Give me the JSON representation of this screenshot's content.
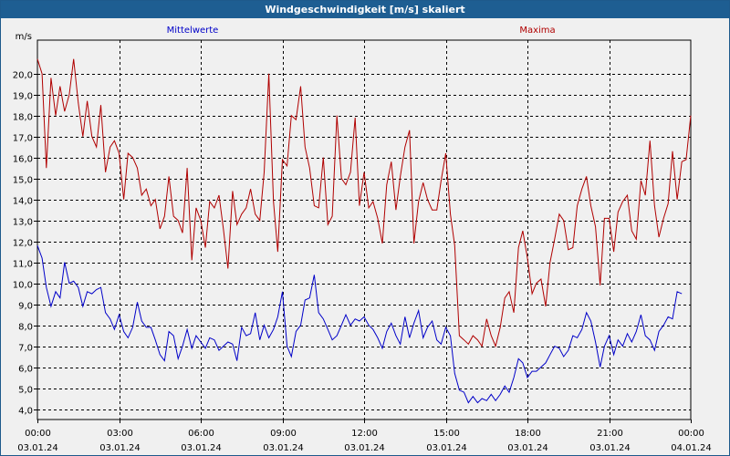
{
  "window": {
    "title": "Windgeschwindigkeit [m/s] skaliert"
  },
  "colors": {
    "titlebar": "#1e5e92",
    "mittelwerte": "#0000c8",
    "maxima": "#b00000",
    "grid": "#000000"
  },
  "chart_data": {
    "type": "line",
    "title": "Windgeschwindigkeit [m/s] skaliert",
    "ylabel": "m/s",
    "xlabel": "",
    "ylim": [
      3.5,
      21.6
    ],
    "yticks": [
      4.0,
      5.0,
      6.0,
      7.0,
      8.0,
      9.0,
      10.0,
      11.0,
      12.0,
      13.0,
      14.0,
      15.0,
      16.0,
      17.0,
      18.0,
      19.0,
      20.0
    ],
    "ytick_labels": [
      "4,0",
      "5,0",
      "6,0",
      "7,0",
      "8,0",
      "9,0",
      "10,0",
      "11,0",
      "12,0",
      "13,0",
      "14,0",
      "15,0",
      "16,0",
      "17,0",
      "18,0",
      "19,0",
      "20,0"
    ],
    "xlim": [
      0,
      24
    ],
    "xticks": [
      0,
      3,
      6,
      9,
      12,
      15,
      18,
      21,
      24
    ],
    "xtick_time_labels": [
      "00:00",
      "03:00",
      "06:00",
      "09:00",
      "12:00",
      "15:00",
      "18:00",
      "21:00",
      "00:00"
    ],
    "xtick_date_labels": [
      "03.01.24",
      "03.01.24",
      "03.01.24",
      "03.01.24",
      "03.01.24",
      "03.01.24",
      "03.01.24",
      "03.01.24",
      "04.01.24"
    ],
    "grid": true,
    "legend": "top",
    "series": [
      {
        "name": "Mittelwerte",
        "color": "#0000c8",
        "values": [
          [
            0.0,
            11.8
          ],
          [
            0.17,
            11.2
          ],
          [
            0.33,
            9.8
          ],
          [
            0.5,
            8.9
          ],
          [
            0.67,
            9.6
          ],
          [
            0.83,
            9.3
          ],
          [
            1.0,
            11.0
          ],
          [
            1.17,
            10.0
          ],
          [
            1.33,
            10.1
          ],
          [
            1.5,
            9.8
          ],
          [
            1.67,
            8.9
          ],
          [
            1.83,
            9.6
          ],
          [
            2.0,
            9.5
          ],
          [
            2.17,
            9.7
          ],
          [
            2.33,
            9.8
          ],
          [
            2.5,
            8.6
          ],
          [
            2.67,
            8.3
          ],
          [
            2.83,
            7.8
          ],
          [
            3.0,
            8.5
          ],
          [
            3.17,
            7.7
          ],
          [
            3.33,
            7.4
          ],
          [
            3.5,
            7.9
          ],
          [
            3.67,
            9.1
          ],
          [
            3.83,
            8.2
          ],
          [
            4.0,
            7.9
          ],
          [
            4.17,
            7.9
          ],
          [
            4.33,
            7.3
          ],
          [
            4.5,
            6.6
          ],
          [
            4.67,
            6.3
          ],
          [
            4.83,
            7.7
          ],
          [
            5.0,
            7.5
          ],
          [
            5.17,
            6.4
          ],
          [
            5.33,
            7.0
          ],
          [
            5.5,
            7.8
          ],
          [
            5.67,
            6.9
          ],
          [
            5.83,
            7.5
          ],
          [
            6.0,
            7.2
          ],
          [
            6.17,
            6.9
          ],
          [
            6.33,
            7.4
          ],
          [
            6.5,
            7.3
          ],
          [
            6.67,
            6.8
          ],
          [
            6.83,
            7.0
          ],
          [
            7.0,
            7.2
          ],
          [
            7.17,
            7.1
          ],
          [
            7.33,
            6.3
          ],
          [
            7.5,
            7.9
          ],
          [
            7.67,
            7.5
          ],
          [
            7.83,
            7.6
          ],
          [
            8.0,
            8.6
          ],
          [
            8.17,
            7.3
          ],
          [
            8.33,
            8.0
          ],
          [
            8.5,
            7.4
          ],
          [
            8.67,
            7.8
          ],
          [
            8.83,
            8.4
          ],
          [
            9.0,
            9.6
          ],
          [
            9.17,
            7.0
          ],
          [
            9.33,
            6.5
          ],
          [
            9.5,
            7.7
          ],
          [
            9.67,
            8.0
          ],
          [
            9.83,
            9.2
          ],
          [
            10.0,
            9.3
          ],
          [
            10.17,
            10.4
          ],
          [
            10.33,
            8.6
          ],
          [
            10.5,
            8.3
          ],
          [
            10.67,
            7.8
          ],
          [
            10.83,
            7.3
          ],
          [
            11.0,
            7.5
          ],
          [
            11.17,
            8.0
          ],
          [
            11.33,
            8.5
          ],
          [
            11.5,
            8.0
          ],
          [
            11.67,
            8.3
          ],
          [
            11.83,
            8.2
          ],
          [
            12.0,
            8.4
          ],
          [
            12.17,
            8.0
          ],
          [
            12.33,
            7.8
          ],
          [
            12.5,
            7.4
          ],
          [
            12.67,
            6.9
          ],
          [
            12.83,
            7.7
          ],
          [
            13.0,
            8.1
          ],
          [
            13.17,
            7.5
          ],
          [
            13.33,
            7.1
          ],
          [
            13.5,
            8.4
          ],
          [
            13.67,
            7.4
          ],
          [
            13.83,
            8.1
          ],
          [
            14.0,
            8.7
          ],
          [
            14.17,
            7.4
          ],
          [
            14.33,
            7.9
          ],
          [
            14.5,
            8.2
          ],
          [
            14.67,
            7.3
          ],
          [
            14.83,
            7.1
          ],
          [
            15.0,
            7.9
          ],
          [
            15.17,
            7.5
          ],
          [
            15.33,
            5.7
          ],
          [
            15.5,
            4.9
          ],
          [
            15.67,
            4.8
          ],
          [
            15.83,
            4.3
          ],
          [
            16.0,
            4.6
          ],
          [
            16.17,
            4.3
          ],
          [
            16.33,
            4.5
          ],
          [
            16.5,
            4.4
          ],
          [
            16.67,
            4.7
          ],
          [
            16.83,
            4.4
          ],
          [
            17.0,
            4.7
          ],
          [
            17.17,
            5.1
          ],
          [
            17.33,
            4.8
          ],
          [
            17.5,
            5.5
          ],
          [
            17.67,
            6.4
          ],
          [
            17.83,
            6.2
          ],
          [
            18.0,
            5.5
          ],
          [
            18.17,
            5.8
          ],
          [
            18.33,
            5.8
          ],
          [
            18.5,
            6.0
          ],
          [
            18.67,
            6.2
          ],
          [
            18.83,
            6.6
          ],
          [
            19.0,
            7.0
          ],
          [
            19.17,
            6.9
          ],
          [
            19.33,
            6.5
          ],
          [
            19.5,
            6.8
          ],
          [
            19.67,
            7.5
          ],
          [
            19.83,
            7.4
          ],
          [
            20.0,
            7.8
          ],
          [
            20.17,
            8.6
          ],
          [
            20.33,
            8.2
          ],
          [
            20.5,
            7.2
          ],
          [
            20.67,
            6.0
          ],
          [
            20.83,
            7.0
          ],
          [
            21.0,
            7.5
          ],
          [
            21.17,
            6.6
          ],
          [
            21.33,
            7.3
          ],
          [
            21.5,
            7.0
          ],
          [
            21.67,
            7.6
          ],
          [
            21.83,
            7.2
          ],
          [
            22.0,
            7.7
          ],
          [
            22.17,
            8.5
          ],
          [
            22.33,
            7.5
          ],
          [
            22.5,
            7.3
          ],
          [
            22.67,
            6.8
          ],
          [
            22.83,
            7.7
          ],
          [
            23.0,
            8.0
          ],
          [
            23.17,
            8.4
          ],
          [
            23.33,
            8.3
          ],
          [
            23.5,
            9.6
          ],
          [
            23.67,
            9.5
          ]
        ]
      },
      {
        "name": "Maxima",
        "color": "#b00000",
        "values": [
          [
            0.0,
            20.7
          ],
          [
            0.17,
            20.0
          ],
          [
            0.33,
            15.5
          ],
          [
            0.5,
            19.8
          ],
          [
            0.67,
            18.0
          ],
          [
            0.83,
            19.4
          ],
          [
            1.0,
            18.2
          ],
          [
            1.17,
            19.0
          ],
          [
            1.33,
            20.7
          ],
          [
            1.5,
            18.6
          ],
          [
            1.67,
            17.0
          ],
          [
            1.83,
            18.7
          ],
          [
            2.0,
            17.0
          ],
          [
            2.17,
            16.5
          ],
          [
            2.33,
            18.5
          ],
          [
            2.5,
            15.3
          ],
          [
            2.67,
            16.5
          ],
          [
            2.83,
            16.8
          ],
          [
            3.0,
            16.2
          ],
          [
            3.17,
            14.0
          ],
          [
            3.33,
            16.2
          ],
          [
            3.5,
            16.0
          ],
          [
            3.67,
            15.5
          ],
          [
            3.83,
            14.2
          ],
          [
            4.0,
            14.5
          ],
          [
            4.17,
            13.7
          ],
          [
            4.33,
            14.0
          ],
          [
            4.5,
            12.6
          ],
          [
            4.67,
            13.2
          ],
          [
            4.83,
            15.1
          ],
          [
            5.0,
            13.2
          ],
          [
            5.17,
            13.0
          ],
          [
            5.33,
            12.4
          ],
          [
            5.5,
            15.5
          ],
          [
            5.67,
            11.1
          ],
          [
            5.83,
            13.6
          ],
          [
            6.0,
            13.0
          ],
          [
            6.17,
            11.7
          ],
          [
            6.33,
            13.9
          ],
          [
            6.5,
            13.6
          ],
          [
            6.67,
            14.2
          ],
          [
            6.83,
            12.6
          ],
          [
            7.0,
            10.7
          ],
          [
            7.17,
            14.4
          ],
          [
            7.33,
            12.8
          ],
          [
            7.5,
            13.3
          ],
          [
            7.67,
            13.6
          ],
          [
            7.83,
            14.5
          ],
          [
            8.0,
            13.3
          ],
          [
            8.17,
            13.0
          ],
          [
            8.33,
            15.3
          ],
          [
            8.5,
            20.0
          ],
          [
            8.67,
            13.9
          ],
          [
            8.83,
            11.5
          ],
          [
            9.0,
            15.9
          ],
          [
            9.17,
            15.6
          ],
          [
            9.33,
            18.0
          ],
          [
            9.5,
            17.8
          ],
          [
            9.67,
            19.4
          ],
          [
            9.83,
            16.5
          ],
          [
            10.0,
            15.5
          ],
          [
            10.17,
            13.7
          ],
          [
            10.33,
            13.6
          ],
          [
            10.5,
            16.0
          ],
          [
            10.67,
            12.8
          ],
          [
            10.83,
            13.2
          ],
          [
            11.0,
            18.0
          ],
          [
            11.17,
            15.0
          ],
          [
            11.33,
            14.7
          ],
          [
            11.5,
            15.3
          ],
          [
            11.67,
            17.9
          ],
          [
            11.83,
            13.7
          ],
          [
            12.0,
            15.3
          ],
          [
            12.17,
            13.6
          ],
          [
            12.33,
            13.9
          ],
          [
            12.5,
            13.1
          ],
          [
            12.67,
            11.9
          ],
          [
            12.83,
            14.7
          ],
          [
            13.0,
            15.8
          ],
          [
            13.17,
            13.5
          ],
          [
            13.33,
            15.1
          ],
          [
            13.5,
            16.5
          ],
          [
            13.67,
            17.3
          ],
          [
            13.83,
            11.9
          ],
          [
            14.0,
            13.9
          ],
          [
            14.17,
            14.8
          ],
          [
            14.33,
            14.0
          ],
          [
            14.5,
            13.5
          ],
          [
            14.67,
            13.5
          ],
          [
            14.83,
            14.9
          ],
          [
            15.0,
            16.2
          ],
          [
            15.17,
            13.3
          ],
          [
            15.33,
            11.8
          ],
          [
            15.5,
            7.5
          ],
          [
            15.67,
            7.3
          ],
          [
            15.83,
            7.1
          ],
          [
            16.0,
            7.5
          ],
          [
            16.17,
            7.3
          ],
          [
            16.33,
            7.0
          ],
          [
            16.5,
            8.3
          ],
          [
            16.67,
            7.5
          ],
          [
            16.83,
            7.0
          ],
          [
            17.0,
            7.9
          ],
          [
            17.17,
            9.3
          ],
          [
            17.33,
            9.6
          ],
          [
            17.5,
            8.6
          ],
          [
            17.67,
            11.7
          ],
          [
            17.83,
            12.5
          ],
          [
            18.0,
            11.2
          ],
          [
            18.17,
            9.5
          ],
          [
            18.33,
            10.0
          ],
          [
            18.5,
            10.2
          ],
          [
            18.67,
            8.9
          ],
          [
            18.83,
            11.0
          ],
          [
            19.0,
            12.1
          ],
          [
            19.17,
            13.3
          ],
          [
            19.33,
            13.0
          ],
          [
            19.5,
            11.6
          ],
          [
            19.67,
            11.7
          ],
          [
            19.83,
            13.7
          ],
          [
            20.0,
            14.5
          ],
          [
            20.17,
            15.1
          ],
          [
            20.33,
            13.7
          ],
          [
            20.5,
            12.7
          ],
          [
            20.67,
            9.9
          ],
          [
            20.83,
            13.1
          ],
          [
            21.0,
            13.1
          ],
          [
            21.17,
            11.5
          ],
          [
            21.33,
            13.4
          ],
          [
            21.5,
            13.9
          ],
          [
            21.67,
            14.2
          ],
          [
            21.83,
            12.5
          ],
          [
            22.0,
            12.1
          ],
          [
            22.17,
            14.9
          ],
          [
            22.33,
            14.2
          ],
          [
            22.5,
            16.8
          ],
          [
            22.67,
            13.7
          ],
          [
            22.83,
            12.2
          ],
          [
            23.0,
            13.1
          ],
          [
            23.17,
            13.8
          ],
          [
            23.33,
            16.3
          ],
          [
            23.5,
            14.0
          ],
          [
            23.67,
            15.8
          ],
          [
            23.83,
            15.9
          ],
          [
            24.0,
            18.0
          ]
        ]
      }
    ]
  }
}
